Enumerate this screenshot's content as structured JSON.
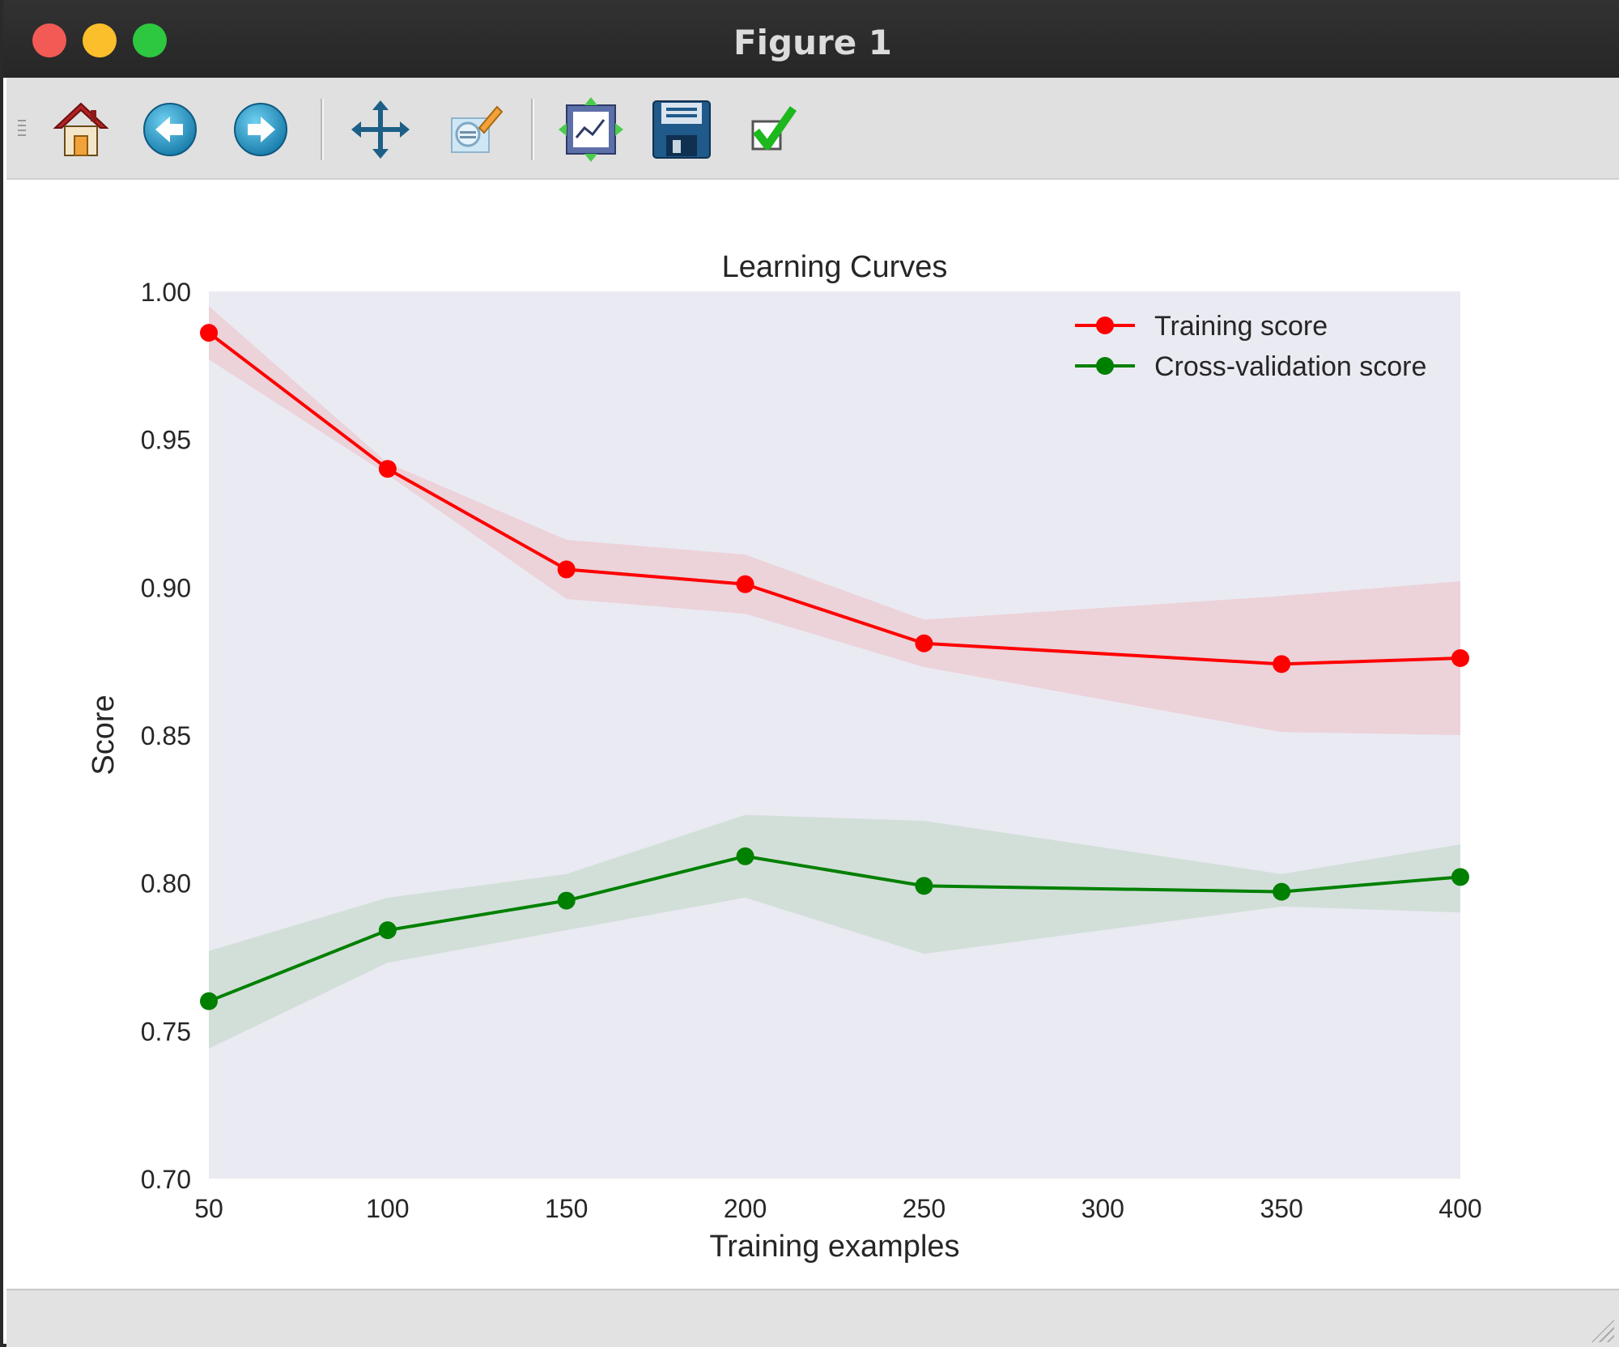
{
  "window": {
    "title": "Figure 1"
  },
  "toolbar": {
    "tools": [
      {
        "name": "home",
        "icon": "home-icon"
      },
      {
        "name": "back",
        "icon": "arrow-left-icon"
      },
      {
        "name": "forward",
        "icon": "arrow-right-icon"
      },
      {
        "name": "pan",
        "icon": "move-icon"
      },
      {
        "name": "zoom",
        "icon": "zoom-rect-icon"
      },
      {
        "name": "subplots",
        "icon": "subplots-icon"
      },
      {
        "name": "save",
        "icon": "floppy-icon"
      },
      {
        "name": "edit-axes",
        "icon": "checkmark-icon"
      }
    ]
  },
  "colors": {
    "training": "#ff0000",
    "cross_validation": "#008000",
    "axes_bg": "#eaeaf2",
    "titlebar": "#2c2c2c"
  },
  "chart_data": {
    "type": "line",
    "title": "Learning Curves",
    "xlabel": "Training examples",
    "ylabel": "Score",
    "xlim": [
      50,
      400
    ],
    "ylim": [
      0.7,
      1.0
    ],
    "xticks": [
      "50",
      "100",
      "150",
      "200",
      "250",
      "300",
      "350",
      "400"
    ],
    "yticks": [
      "1.00",
      "0.95",
      "0.90",
      "0.85",
      "0.80",
      "0.75",
      "0.70"
    ],
    "grid": false,
    "legend_position": "top-right",
    "x": [
      50,
      100,
      150,
      200,
      250,
      350,
      400
    ],
    "series": [
      {
        "name": "Training score",
        "color": "#ff0000",
        "values": [
          0.986,
          0.94,
          0.906,
          0.901,
          0.881,
          0.874,
          0.876
        ],
        "band_upper": [
          0.995,
          0.942,
          0.916,
          0.911,
          0.889,
          0.897,
          0.902
        ],
        "band_lower": [
          0.977,
          0.938,
          0.896,
          0.891,
          0.873,
          0.851,
          0.85
        ]
      },
      {
        "name": "Cross-validation score",
        "color": "#008000",
        "values": [
          0.76,
          0.784,
          0.794,
          0.809,
          0.799,
          0.797,
          0.802
        ],
        "band_upper": [
          0.777,
          0.795,
          0.803,
          0.823,
          0.821,
          0.803,
          0.813
        ],
        "band_lower": [
          0.744,
          0.773,
          0.784,
          0.795,
          0.776,
          0.792,
          0.79
        ]
      }
    ]
  }
}
